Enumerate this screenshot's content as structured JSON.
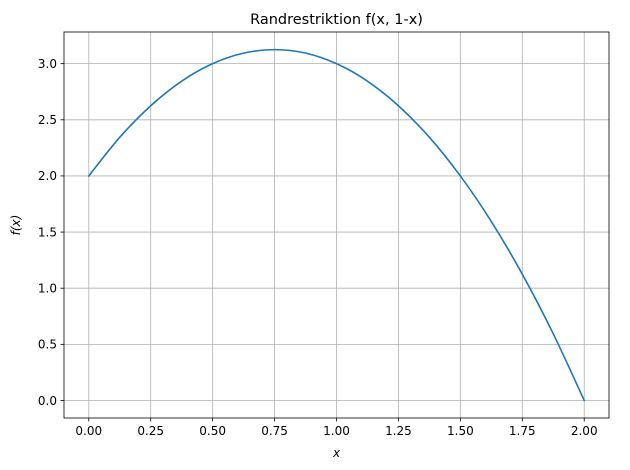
{
  "chart_data": {
    "type": "line",
    "title": "Randrestriktion f(x, 1-x)",
    "xlabel": "x",
    "ylabel": "f(x)",
    "xlim": [
      -0.1,
      2.1
    ],
    "ylim": [
      -0.156,
      3.282
    ],
    "xticks": [
      0.0,
      0.25,
      0.5,
      0.75,
      1.0,
      1.25,
      1.5,
      1.75,
      2.0
    ],
    "xtick_labels": [
      "0.00",
      "0.25",
      "0.50",
      "0.75",
      "1.00",
      "1.25",
      "1.50",
      "1.75",
      "2.00"
    ],
    "yticks": [
      0.0,
      0.5,
      1.0,
      1.5,
      2.0,
      2.5,
      3.0
    ],
    "ytick_labels": [
      "0.0",
      "0.5",
      "1.0",
      "1.5",
      "2.0",
      "2.5",
      "3.0"
    ],
    "grid": true,
    "series": [
      {
        "color": "#1f77b4",
        "x": [
          0.0,
          0.125,
          0.25,
          0.375,
          0.5,
          0.625,
          0.75,
          0.875,
          1.0,
          1.125,
          1.25,
          1.375,
          1.5,
          1.625,
          1.75,
          1.875,
          2.0
        ],
        "y": [
          2.0,
          2.344,
          2.625,
          2.844,
          3.0,
          3.094,
          3.125,
          3.094,
          3.0,
          2.844,
          2.625,
          2.344,
          2.0,
          1.594,
          1.125,
          0.594,
          0.0
        ]
      }
    ]
  }
}
